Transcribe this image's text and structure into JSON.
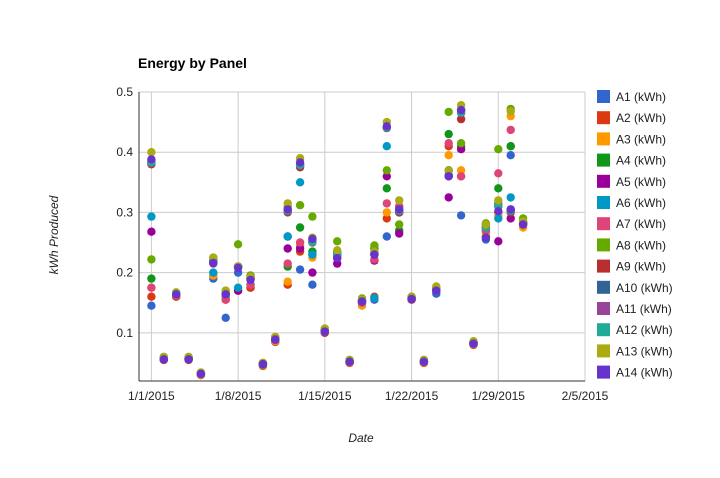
{
  "chart_data": {
    "type": "scatter",
    "title": "Energy by Panel",
    "xlabel": "Date",
    "ylabel": "kWh Produced",
    "x_ticks": [
      "1/1/2015",
      "1/8/2015",
      "1/15/2015",
      "1/22/2015",
      "1/29/2015",
      "2/5/2015"
    ],
    "y_ticks": [
      "0.1",
      "0.2",
      "0.3",
      "0.4",
      "0.5"
    ],
    "xlim": [
      "2014-12-31",
      "2015-02-05"
    ],
    "ylim": [
      0.02,
      0.5
    ],
    "grid": true,
    "legend_position": "right",
    "dates": [
      "2015-01-01",
      "2015-01-02",
      "2015-01-03",
      "2015-01-04",
      "2015-01-05",
      "2015-01-06",
      "2015-01-07",
      "2015-01-08",
      "2015-01-09",
      "2015-01-10",
      "2015-01-11",
      "2015-01-12",
      "2015-01-13",
      "2015-01-14",
      "2015-01-15",
      "2015-01-16",
      "2015-01-17",
      "2015-01-18",
      "2015-01-19",
      "2015-01-20",
      "2015-01-21",
      "2015-01-22",
      "2015-01-23",
      "2015-01-24",
      "2015-01-25",
      "2015-01-26",
      "2015-01-27",
      "2015-01-28",
      "2015-01-29",
      "2015-01-30",
      "2015-01-31"
    ],
    "series": [
      {
        "name": "A1 (kWh)",
        "color": "#3366cc",
        "values": [
          0.145,
          0.055,
          0.16,
          0.055,
          0.03,
          0.19,
          0.125,
          0.2,
          0.175,
          0.045,
          0.085,
          0.26,
          0.205,
          0.18,
          0.1,
          0.225,
          0.05,
          0.15,
          0.155,
          0.26,
          0.3,
          0.155,
          0.05,
          0.165,
          0.37,
          0.295,
          0.08,
          0.255,
          0.315,
          0.395,
          0.285
        ]
      },
      {
        "name": "A2 (kWh)",
        "color": "#dc3912",
        "values": [
          0.16,
          0.055,
          0.16,
          0.055,
          0.03,
          0.195,
          0.155,
          0.17,
          0.175,
          0.045,
          0.085,
          0.18,
          0.235,
          0.23,
          0.1,
          0.225,
          0.05,
          0.15,
          0.16,
          0.29,
          0.31,
          0.155,
          0.05,
          0.17,
          0.41,
          0.36,
          0.08,
          0.26,
          0.3,
          0.41,
          0.285
        ]
      },
      {
        "name": "A3 (kWh)",
        "color": "#ff9900",
        "values": [
          0.175,
          0.058,
          0.162,
          0.056,
          0.03,
          0.195,
          0.155,
          0.17,
          0.18,
          0.046,
          0.086,
          0.185,
          0.245,
          0.225,
          0.102,
          0.23,
          0.051,
          0.145,
          0.158,
          0.3,
          0.31,
          0.156,
          0.051,
          0.17,
          0.395,
          0.37,
          0.081,
          0.265,
          0.295,
          0.46,
          0.275
        ]
      },
      {
        "name": "A4 (kWh)",
        "color": "#109618",
        "values": [
          0.19,
          0.057,
          0.164,
          0.057,
          0.031,
          0.22,
          0.165,
          0.21,
          0.19,
          0.047,
          0.088,
          0.21,
          0.275,
          0.235,
          0.103,
          0.235,
          0.052,
          0.152,
          0.24,
          0.34,
          0.27,
          0.157,
          0.052,
          0.172,
          0.43,
          0.41,
          0.082,
          0.275,
          0.34,
          0.41,
          0.28
        ]
      },
      {
        "name": "A5 (kWh)",
        "color": "#990099",
        "values": [
          0.268,
          0.058,
          0.166,
          0.057,
          0.032,
          0.22,
          0.165,
          0.17,
          0.195,
          0.048,
          0.089,
          0.24,
          0.24,
          0.2,
          0.103,
          0.215,
          0.052,
          0.153,
          0.22,
          0.36,
          0.265,
          0.158,
          0.052,
          0.172,
          0.325,
          0.405,
          0.083,
          0.28,
          0.252,
          0.29,
          0.283
        ]
      },
      {
        "name": "A6 (kWh)",
        "color": "#0099c6",
        "values": [
          0.293,
          0.058,
          0.165,
          0.057,
          0.032,
          0.2,
          0.16,
          0.175,
          0.18,
          0.048,
          0.088,
          0.26,
          0.35,
          0.23,
          0.102,
          0.23,
          0.052,
          0.15,
          0.158,
          0.41,
          0.3,
          0.157,
          0.052,
          0.17,
          0.37,
          0.47,
          0.082,
          0.27,
          0.29,
          0.325,
          0.28
        ]
      },
      {
        "name": "A7 (kWh)",
        "color": "#dd4477",
        "values": [
          0.175,
          0.058,
          0.162,
          0.057,
          0.031,
          0.215,
          0.155,
          0.21,
          0.18,
          0.048,
          0.088,
          0.215,
          0.25,
          0.255,
          0.102,
          0.225,
          0.052,
          0.15,
          0.222,
          0.315,
          0.31,
          0.156,
          0.052,
          0.17,
          0.415,
          0.36,
          0.082,
          0.27,
          0.365,
          0.437,
          0.28
        ]
      },
      {
        "name": "A8 (kWh)",
        "color": "#66aa00",
        "values": [
          0.222,
          0.06,
          0.167,
          0.06,
          0.034,
          0.225,
          0.17,
          0.247,
          0.195,
          0.05,
          0.093,
          0.31,
          0.312,
          0.293,
          0.107,
          0.252,
          0.055,
          0.157,
          0.245,
          0.37,
          0.28,
          0.16,
          0.055,
          0.175,
          0.467,
          0.415,
          0.086,
          0.282,
          0.405,
          0.472,
          0.29
        ]
      },
      {
        "name": "A9 (kWh)",
        "color": "#b82e2e",
        "values": [
          0.38,
          0.058,
          0.164,
          0.058,
          0.033,
          0.218,
          0.165,
          0.21,
          0.19,
          0.049,
          0.09,
          0.3,
          0.375,
          0.25,
          0.104,
          0.23,
          0.053,
          0.153,
          0.23,
          0.44,
          0.3,
          0.158,
          0.053,
          0.172,
          0.36,
          0.455,
          0.084,
          0.275,
          0.31,
          0.3,
          0.282
        ]
      },
      {
        "name": "A10 (kWh)",
        "color": "#316395",
        "values": [
          0.385,
          0.058,
          0.164,
          0.058,
          0.033,
          0.218,
          0.165,
          0.21,
          0.19,
          0.049,
          0.09,
          0.305,
          0.38,
          0.252,
          0.104,
          0.232,
          0.053,
          0.153,
          0.232,
          0.442,
          0.305,
          0.158,
          0.053,
          0.172,
          0.362,
          0.47,
          0.084,
          0.275,
          0.312,
          0.305,
          0.282
        ]
      },
      {
        "name": "A11 (kWh)",
        "color": "#994499",
        "values": [
          0.382,
          0.058,
          0.164,
          0.058,
          0.033,
          0.218,
          0.165,
          0.21,
          0.19,
          0.049,
          0.09,
          0.302,
          0.378,
          0.251,
          0.104,
          0.231,
          0.053,
          0.153,
          0.231,
          0.441,
          0.302,
          0.158,
          0.053,
          0.172,
          0.361,
          0.465,
          0.084,
          0.275,
          0.311,
          0.302,
          0.282
        ]
      },
      {
        "name": "A12 (kWh)",
        "color": "#22aa99",
        "values": [
          0.383,
          0.058,
          0.164,
          0.058,
          0.033,
          0.218,
          0.165,
          0.21,
          0.19,
          0.049,
          0.09,
          0.303,
          0.379,
          0.251,
          0.104,
          0.231,
          0.053,
          0.153,
          0.231,
          0.441,
          0.303,
          0.158,
          0.053,
          0.172,
          0.361,
          0.466,
          0.084,
          0.275,
          0.311,
          0.303,
          0.282
        ]
      },
      {
        "name": "A13 (kWh)",
        "color": "#aaaa11",
        "values": [
          0.4,
          0.06,
          0.166,
          0.06,
          0.034,
          0.225,
          0.17,
          0.21,
          0.193,
          0.05,
          0.093,
          0.315,
          0.39,
          0.258,
          0.107,
          0.237,
          0.055,
          0.155,
          0.235,
          0.45,
          0.32,
          0.16,
          0.055,
          0.177,
          0.37,
          0.478,
          0.086,
          0.28,
          0.32,
          0.468,
          0.285
        ]
      },
      {
        "name": "A14 (kWh)",
        "color": "#6633cc",
        "values": [
          0.388,
          0.056,
          0.164,
          0.056,
          0.032,
          0.216,
          0.164,
          0.208,
          0.188,
          0.048,
          0.089,
          0.305,
          0.383,
          0.256,
          0.102,
          0.224,
          0.052,
          0.152,
          0.23,
          0.443,
          0.305,
          0.156,
          0.052,
          0.17,
          0.36,
          0.47,
          0.082,
          0.258,
          0.302,
          0.305,
          0.28
        ]
      }
    ]
  }
}
